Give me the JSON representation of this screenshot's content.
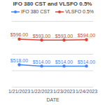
{
  "chart_data": {
    "type": "line",
    "title": "IFO 380 CST and VLSFO 0.5%",
    "x_label": "DATE",
    "categories": [
      "1/21/2023",
      "1/22/2023",
      "1/23/2023",
      "1/24/2023"
    ],
    "series": [
      {
        "name": "IFO 380 CST",
        "color": "#4285f4",
        "marker": "circle",
        "values": [
          518,
          514,
          514,
          514
        ],
        "value_labels": [
          "$518.00",
          "$514.00",
          "$514.00",
          "$514.00"
        ]
      },
      {
        "name": "VLSFO 0.5%",
        "color": "#db4437",
        "marker": "circle",
        "values": [
          596,
          593,
          593,
          594
        ],
        "value_labels": [
          "$596.00",
          "$593.00",
          "$593.00",
          "$594.00"
        ]
      }
    ],
    "ylim": [
      450,
      650
    ],
    "yticks": [
      450,
      500,
      550,
      600,
      650
    ],
    "grid": true,
    "legend": "top",
    "data_labels": true,
    "tick_labels": "x"
  }
}
